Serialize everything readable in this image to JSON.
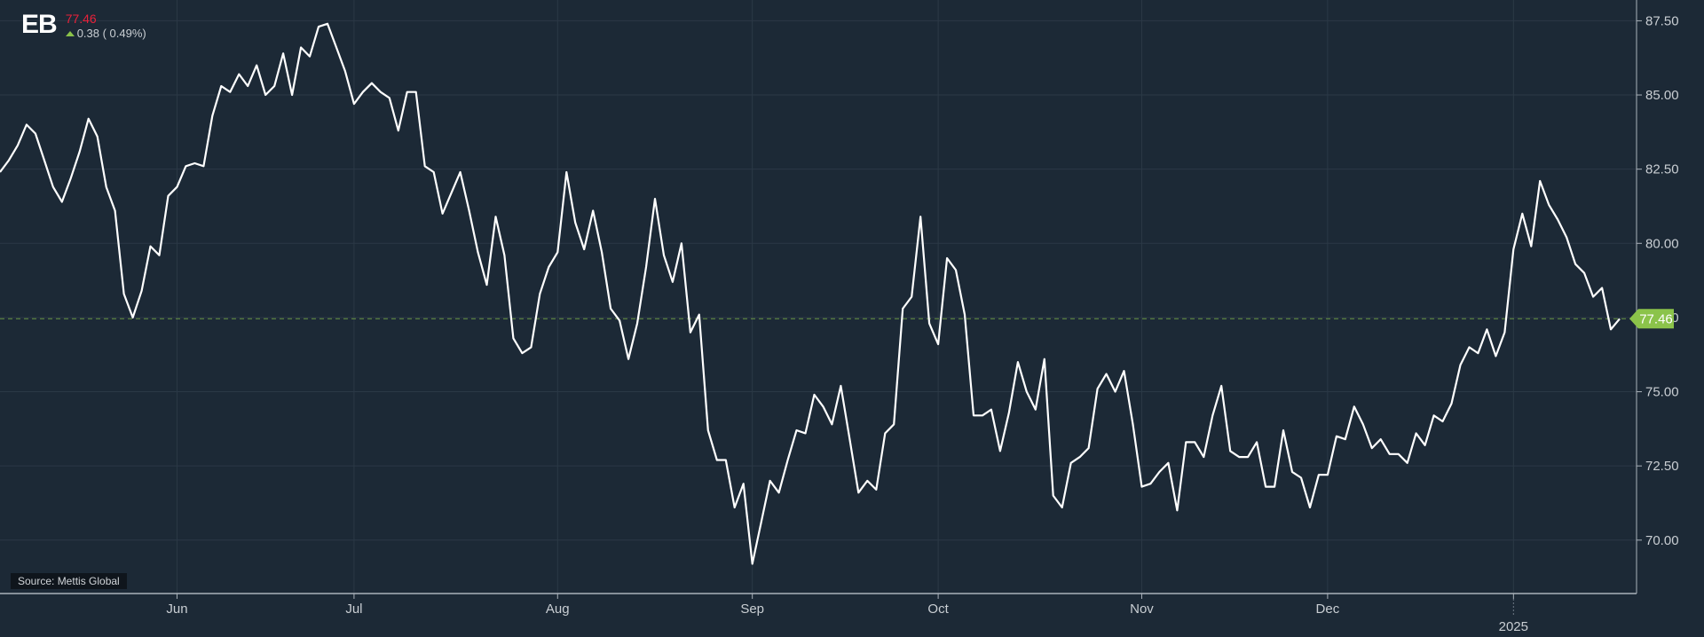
{
  "header": {
    "symbol": "EB",
    "last_price": "77.46",
    "change": "0.38 ( 0.49%)"
  },
  "source_note": "Source: Mettis Global",
  "colors": {
    "background": "#1c2936",
    "line": "#ffffff",
    "grid": "#2b3946",
    "last_price_marker": "#8bc34a",
    "price_text": "#e8213a",
    "up_arrow": "#8bc34a"
  },
  "chart_data": {
    "type": "line",
    "title": "",
    "xlabel": "",
    "ylabel": "",
    "ylim": [
      68.2,
      88.2
    ],
    "y_ticks": [
      "70.00",
      "72.50",
      "75.00",
      "77.50",
      "80.00",
      "82.50",
      "85.00",
      "87.50"
    ],
    "x_tick_labels": [
      {
        "label": "Jun",
        "index": 20
      },
      {
        "label": "Jul",
        "index": 40
      },
      {
        "label": "Aug",
        "index": 63
      },
      {
        "label": "Sep",
        "index": 85
      },
      {
        "label": "Oct",
        "index": 106
      },
      {
        "label": "Nov",
        "index": 129
      },
      {
        "label": "Dec",
        "index": 150
      },
      {
        "label": "2025",
        "index": 171
      }
    ],
    "last_price": 77.46,
    "grid": true,
    "series": [
      {
        "values": [
          82.4,
          82.8,
          83.3,
          84.0,
          83.7,
          82.8,
          81.9,
          81.4,
          82.2,
          83.1,
          84.2,
          83.6,
          81.9,
          81.1,
          78.3,
          77.5,
          78.4,
          79.9,
          79.6,
          81.6,
          81.9,
          82.6,
          82.7,
          82.6,
          84.3,
          85.3,
          85.1,
          85.7,
          85.3,
          86.0,
          85.0,
          85.3,
          86.4,
          85.0,
          86.6,
          86.3,
          87.3,
          87.4,
          86.6,
          85.8,
          84.7,
          85.1,
          85.4,
          85.1,
          84.9,
          83.8,
          85.1,
          85.1,
          82.6,
          82.4,
          81.0,
          81.7,
          82.4,
          81.1,
          79.7,
          78.6,
          80.9,
          79.6,
          76.8,
          76.3,
          76.5,
          78.3,
          79.2,
          79.7,
          82.4,
          80.7,
          79.8,
          81.1,
          79.7,
          77.8,
          77.4,
          76.1,
          77.3,
          79.2,
          81.5,
          79.6,
          78.7,
          80.0,
          77.0,
          77.6,
          73.7,
          72.7,
          72.7,
          71.1,
          71.9,
          69.2,
          70.6,
          72.0,
          71.6,
          72.7,
          73.7,
          73.6,
          74.9,
          74.5,
          73.9,
          75.2,
          73.4,
          71.6,
          72.0,
          71.7,
          73.6,
          73.9,
          77.8,
          78.2,
          80.9,
          77.3,
          76.6,
          79.5,
          79.1,
          77.6,
          74.2,
          74.2,
          74.4,
          73.0,
          74.3,
          76.0,
          75.0,
          74.4,
          76.1,
          71.5,
          71.1,
          72.6,
          72.8,
          73.1,
          75.1,
          75.6,
          75.0,
          75.7,
          73.9,
          71.8,
          71.9,
          72.3,
          72.6,
          71.0,
          73.3,
          73.3,
          72.8,
          74.2,
          75.2,
          73.0,
          72.8,
          72.8,
          73.3,
          71.8,
          71.8,
          73.7,
          72.3,
          72.1,
          71.1,
          72.2,
          72.2,
          73.5,
          73.4,
          74.5,
          73.9,
          73.1,
          73.4,
          72.9,
          72.9,
          72.6,
          73.6,
          73.2,
          74.2,
          74.0,
          74.6,
          75.9,
          76.5,
          76.3,
          77.1,
          76.2,
          77.0,
          79.8,
          81.0,
          79.9,
          82.1,
          81.3,
          80.8,
          80.2,
          79.3,
          79.0,
          78.2,
          78.5,
          77.1,
          77.46
        ]
      }
    ]
  }
}
